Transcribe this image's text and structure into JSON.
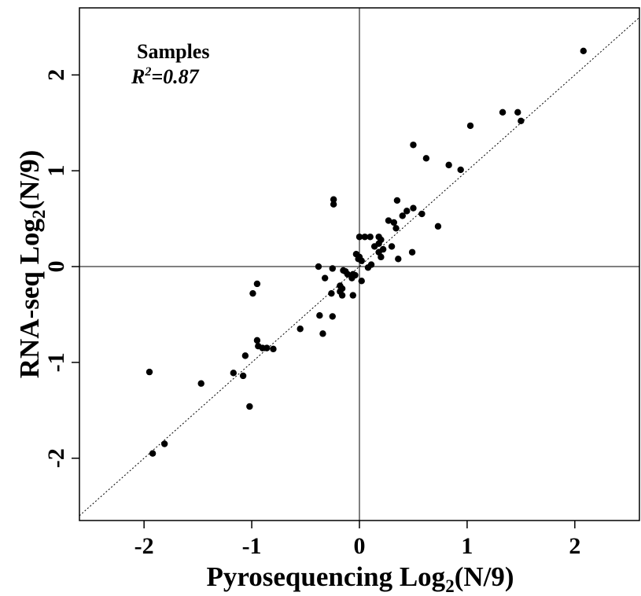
{
  "chart_data": {
    "type": "scatter",
    "xlabel_main": "Pyrosequencing Log",
    "xlabel_sub": "2",
    "xlabel_tail": "(N/9)",
    "ylabel_main": "RNA-seq Log",
    "ylabel_sub": "2",
    "ylabel_tail": "(N/9)",
    "xlim": [
      -2.6,
      2.6
    ],
    "ylim": [
      -2.65,
      2.7
    ],
    "xticks": [
      -2,
      -1,
      0,
      1,
      2
    ],
    "yticks": [
      -2,
      -1,
      0,
      1,
      2
    ],
    "xtick_labels": [
      "-2",
      "-1",
      "0",
      "1",
      "2"
    ],
    "ytick_labels": [
      "-2",
      "-1",
      "0",
      "1",
      "2"
    ],
    "reference_lines": {
      "x": 0,
      "y": 0,
      "diagonal": "y=x dotted"
    },
    "annotation": {
      "title": "Samples",
      "r2_main": "R",
      "r2_sup": "2",
      "r2_value": "=0.87"
    },
    "point_color": "#000000",
    "points": [
      [
        2.08,
        2.25
      ],
      [
        1.33,
        1.61
      ],
      [
        1.47,
        1.61
      ],
      [
        1.5,
        1.52
      ],
      [
        1.03,
        1.47
      ],
      [
        0.5,
        1.27
      ],
      [
        0.62,
        1.13
      ],
      [
        0.83,
        1.06
      ],
      [
        0.94,
        1.01
      ],
      [
        0.35,
        0.69
      ],
      [
        0.5,
        0.61
      ],
      [
        0.44,
        0.58
      ],
      [
        0.58,
        0.55
      ],
      [
        0.4,
        0.53
      ],
      [
        0.27,
        0.48
      ],
      [
        0.32,
        0.46
      ],
      [
        0.73,
        0.42
      ],
      [
        0.34,
        0.4
      ],
      [
        0.0,
        0.31
      ],
      [
        0.05,
        0.31
      ],
      [
        0.1,
        0.31
      ],
      [
        0.18,
        0.31
      ],
      [
        0.2,
        0.28
      ],
      [
        0.18,
        0.24
      ],
      [
        0.3,
        0.21
      ],
      [
        0.14,
        0.21
      ],
      [
        0.22,
        0.18
      ],
      [
        0.18,
        0.15
      ],
      [
        0.2,
        0.1
      ],
      [
        0.49,
        0.15
      ],
      [
        0.36,
        0.08
      ],
      [
        0.11,
        0.02
      ],
      [
        0.08,
        -0.01
      ],
      [
        -0.03,
        0.13
      ],
      [
        -0.01,
        0.08
      ],
      [
        0.02,
        0.06
      ],
      [
        0.0,
        0.1
      ],
      [
        -0.38,
        0.0
      ],
      [
        -0.25,
        -0.02
      ],
      [
        -0.15,
        -0.04
      ],
      [
        -0.13,
        -0.05
      ],
      [
        -0.11,
        -0.08
      ],
      [
        -0.06,
        -0.08
      ],
      [
        -0.04,
        -0.09
      ],
      [
        0.02,
        -0.15
      ],
      [
        -0.07,
        -0.12
      ],
      [
        -0.32,
        -0.12
      ],
      [
        -0.18,
        -0.2
      ],
      [
        -0.16,
        -0.23
      ],
      [
        -0.18,
        -0.26
      ],
      [
        -0.26,
        -0.28
      ],
      [
        -0.16,
        -0.3
      ],
      [
        -0.06,
        -0.3
      ],
      [
        -0.24,
        0.7
      ],
      [
        -0.24,
        0.65
      ],
      [
        -0.95,
        -0.18
      ],
      [
        -0.99,
        -0.28
      ],
      [
        -0.37,
        -0.51
      ],
      [
        -0.25,
        -0.52
      ],
      [
        -0.55,
        -0.65
      ],
      [
        -0.34,
        -0.7
      ],
      [
        -0.95,
        -0.77
      ],
      [
        -0.94,
        -0.83
      ],
      [
        -0.9,
        -0.85
      ],
      [
        -0.86,
        -0.85
      ],
      [
        -0.8,
        -0.86
      ],
      [
        -1.06,
        -0.93
      ],
      [
        -1.17,
        -1.11
      ],
      [
        -1.08,
        -1.14
      ],
      [
        -1.95,
        -1.1
      ],
      [
        -1.47,
        -1.22
      ],
      [
        -1.02,
        -1.46
      ],
      [
        -1.81,
        -1.85
      ],
      [
        -1.92,
        -1.95
      ]
    ]
  }
}
